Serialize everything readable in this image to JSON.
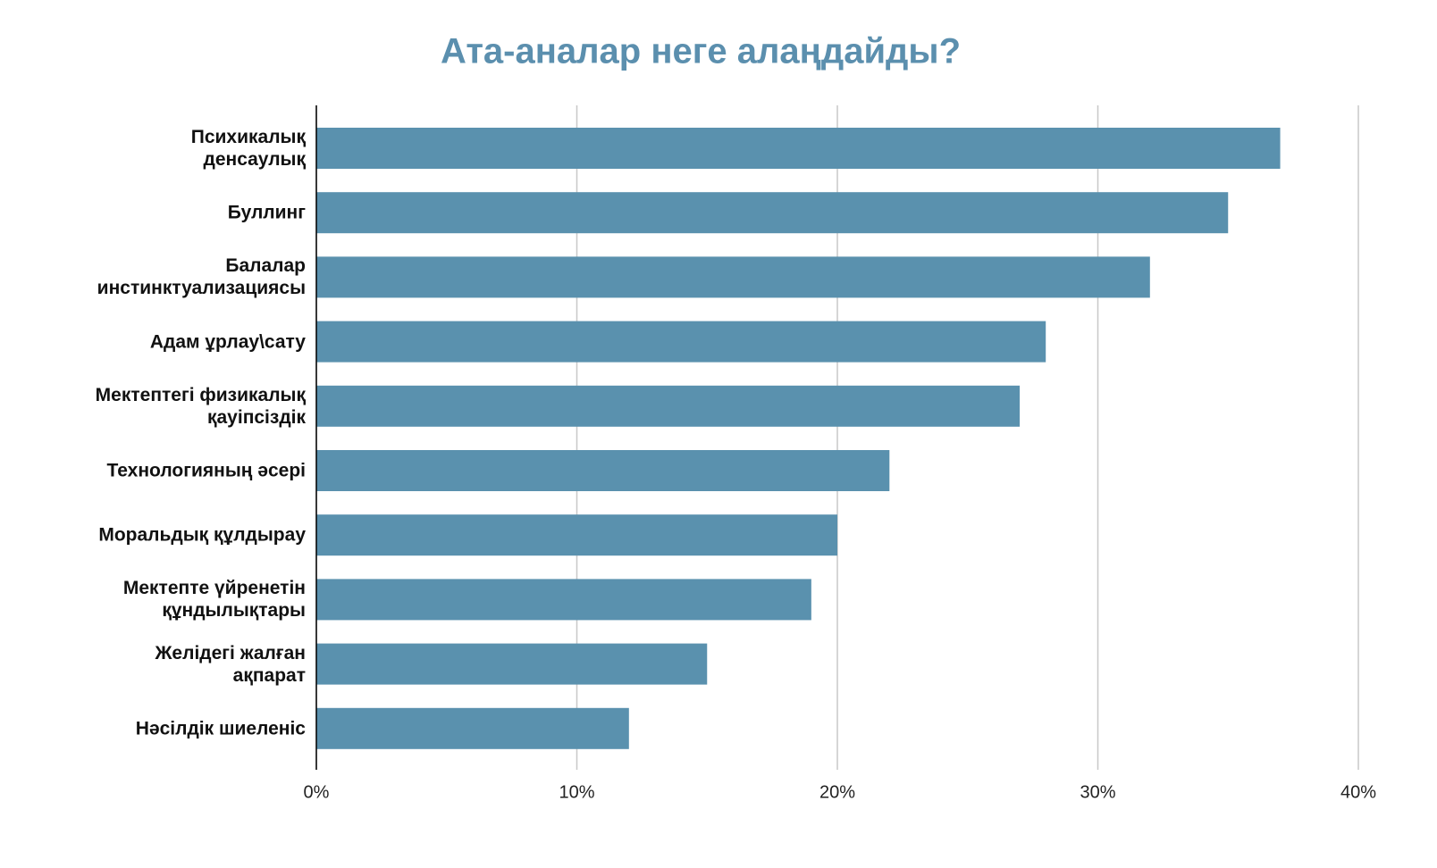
{
  "chart_data": {
    "type": "bar",
    "orientation": "horizontal",
    "title": "Ата-аналар неге алаңдайды?",
    "categories": [
      "Психикалық\nденсаулық",
      "Буллинг",
      "Балалар\nинстинктуализациясы",
      "Адам ұрлау\\сату",
      "Мектептегі физикалық\nқауіпсіздік",
      "Технологияның әсері",
      "Моральдық құлдырау",
      "Мектепте үйренетін\nқұндылықтары",
      "Желідегі жалған\nақпарат",
      "Нәсілдік шиеленіс"
    ],
    "values": [
      37,
      35,
      32,
      28,
      27,
      22,
      20,
      19,
      15,
      12
    ],
    "color": "#5a91ae",
    "xlim": [
      0,
      40
    ],
    "xticks": [
      {
        "value": 0,
        "label": "0%"
      },
      {
        "value": 10,
        "label": "10%"
      },
      {
        "value": 20,
        "label": "20%"
      },
      {
        "value": 30,
        "label": "30%"
      },
      {
        "value": 40,
        "label": "40%"
      }
    ],
    "grid": true
  }
}
